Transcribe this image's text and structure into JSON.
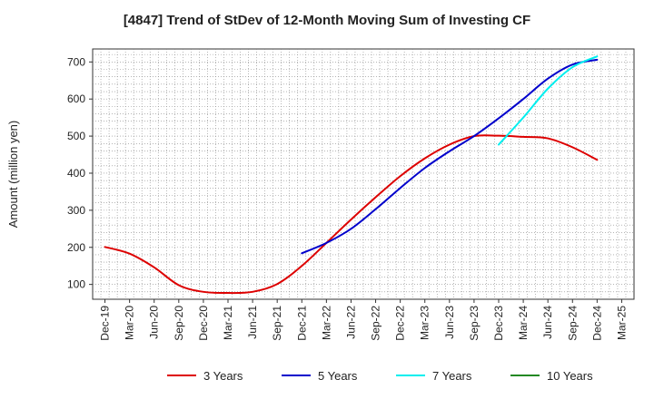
{
  "chart_data": {
    "type": "line",
    "title": "[4847]  Trend of StDev of 12-Month Moving Sum of Investing CF",
    "xlabel": "",
    "ylabel": "Amount (million yen)",
    "ylim": [
      60,
      735
    ],
    "yticks": [
      100,
      200,
      300,
      400,
      500,
      600,
      700
    ],
    "x_categories": [
      "Dec-19",
      "Mar-20",
      "Jun-20",
      "Sep-20",
      "Dec-20",
      "Mar-21",
      "Jun-21",
      "Sep-21",
      "Dec-21",
      "Mar-22",
      "Jun-22",
      "Sep-22",
      "Dec-22",
      "Mar-23",
      "Jun-23",
      "Sep-23",
      "Dec-23",
      "Mar-24",
      "Jun-24",
      "Sep-24",
      "Dec-24",
      "Mar-25"
    ],
    "grid": true,
    "legend_position": "bottom",
    "series": [
      {
        "name": "3 Years",
        "color": "#dd0000",
        "x": [
          "Dec-19",
          "Mar-20",
          "Jun-20",
          "Sep-20",
          "Dec-20",
          "Mar-21",
          "Jun-21",
          "Sep-21",
          "Dec-21",
          "Mar-22",
          "Jun-22",
          "Sep-22",
          "Dec-22",
          "Mar-23",
          "Jun-23",
          "Sep-23",
          "Dec-23",
          "Mar-24",
          "Jun-24",
          "Sep-24",
          "Dec-24"
        ],
        "values": [
          201,
          183,
          146,
          98,
          80,
          77,
          80,
          101,
          150,
          212,
          275,
          335,
          392,
          440,
          477,
          500,
          501,
          498,
          494,
          470,
          436
        ]
      },
      {
        "name": "5 Years",
        "color": "#0000cc",
        "x": [
          "Dec-21",
          "Mar-22",
          "Jun-22",
          "Sep-22",
          "Dec-22",
          "Mar-23",
          "Jun-23",
          "Sep-23",
          "Dec-23",
          "Mar-24",
          "Jun-24",
          "Sep-24",
          "Dec-24"
        ],
        "values": [
          184,
          212,
          250,
          303,
          360,
          414,
          459,
          500,
          548,
          600,
          655,
          693,
          706
        ]
      },
      {
        "name": "7 Years",
        "color": "#00eeee",
        "x": [
          "Dec-23",
          "Mar-24",
          "Jun-24",
          "Sep-24",
          "Dec-24"
        ],
        "values": [
          477,
          550,
          628,
          686,
          715
        ]
      },
      {
        "name": "10 Years",
        "color": "#228822",
        "x": [],
        "values": []
      }
    ]
  }
}
